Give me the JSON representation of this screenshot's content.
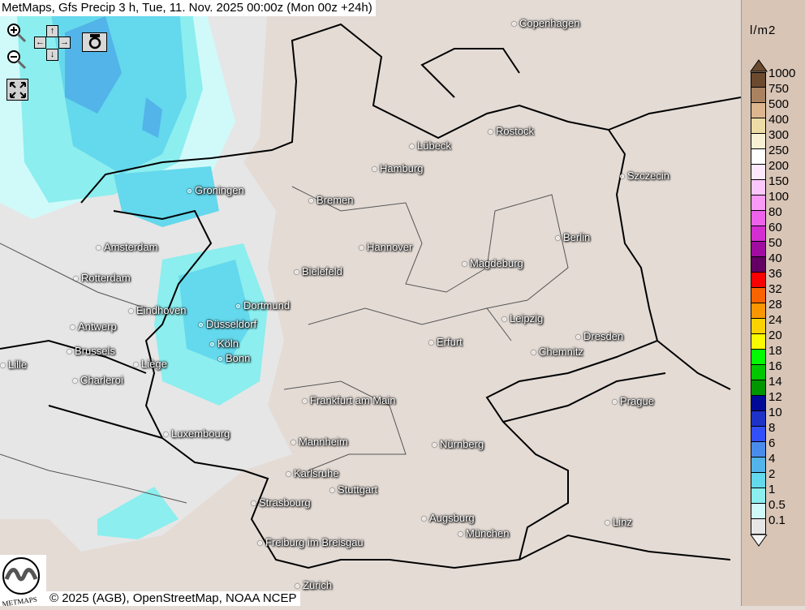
{
  "title": "MetMaps, Gfs Precip 3 h, Tue, 11. Nov. 2025 00:00z (Mon 00z +24h)",
  "controls": {
    "zoom_in": "zoom-in-icon",
    "zoom_out": "zoom-out-icon",
    "fullscreen": "fullscreen-icon",
    "camera": "camera-icon",
    "pan_up": "↑",
    "pan_down": "↓",
    "pan_left": "←",
    "pan_right": "→"
  },
  "copyright": "© 2025 (AGB), OpenStreetMap, NOAA NCEP",
  "logo_text": "METMAPS",
  "cities": [
    {
      "name": "Copenhagen"
    },
    {
      "name": "Rostock"
    },
    {
      "name": "Lübeck"
    },
    {
      "name": "Hamburg"
    },
    {
      "name": "Szczecin"
    },
    {
      "name": "Groningen"
    },
    {
      "name": "Bremen"
    },
    {
      "name": "Berlin"
    },
    {
      "name": "Amsterdam"
    },
    {
      "name": "Hannover"
    },
    {
      "name": "Magdeburg"
    },
    {
      "name": "Bielefeld"
    },
    {
      "name": "Rotterdam"
    },
    {
      "name": "Dortmund"
    },
    {
      "name": "Eindhoven"
    },
    {
      "name": "Leipzig"
    },
    {
      "name": "Antwerp"
    },
    {
      "name": "Düsseldorf"
    },
    {
      "name": "Dresden"
    },
    {
      "name": "Erfurt"
    },
    {
      "name": "Köln"
    },
    {
      "name": "Brussels"
    },
    {
      "name": "Chemnitz"
    },
    {
      "name": "Bonn"
    },
    {
      "name": "Lille"
    },
    {
      "name": "Liège"
    },
    {
      "name": "Charleroi"
    },
    {
      "name": "Frankfurt am Main"
    },
    {
      "name": "Prague"
    },
    {
      "name": "Luxembourg"
    },
    {
      "name": "Mannheim"
    },
    {
      "name": "Nürnberg"
    },
    {
      "name": "Karlsruhe"
    },
    {
      "name": "Stuttgart"
    },
    {
      "name": "Strasbourg"
    },
    {
      "name": "Augsburg"
    },
    {
      "name": "Linz"
    },
    {
      "name": "München"
    },
    {
      "name": "Freiburg im Breisgau"
    },
    {
      "name": "Zürich"
    }
  ],
  "legend": {
    "unit": "l/m2",
    "items": [
      {
        "label": "1000",
        "color": "#6b4a2e"
      },
      {
        "label": "750",
        "color": "#a98260"
      },
      {
        "label": "500",
        "color": "#dcb68e"
      },
      {
        "label": "400",
        "color": "#eedca6"
      },
      {
        "label": "300",
        "color": "#f8f0d4"
      },
      {
        "label": "250",
        "color": "#ffffff"
      },
      {
        "label": "200",
        "color": "#fde8fd"
      },
      {
        "label": "150",
        "color": "#fcc8fc"
      },
      {
        "label": "100",
        "color": "#f89af6"
      },
      {
        "label": "80",
        "color": "#ec62ea"
      },
      {
        "label": "60",
        "color": "#d42ed2"
      },
      {
        "label": "50",
        "color": "#a00ca0"
      },
      {
        "label": "40",
        "color": "#640064"
      },
      {
        "label": "36",
        "color": "#fa0000"
      },
      {
        "label": "32",
        "color": "#fa6400"
      },
      {
        "label": "28",
        "color": "#fa9600"
      },
      {
        "label": "24",
        "color": "#fad200"
      },
      {
        "label": "20",
        "color": "#fafa00"
      },
      {
        "label": "18",
        "color": "#00fa00"
      },
      {
        "label": "16",
        "color": "#00c800"
      },
      {
        "label": "14",
        "color": "#009600"
      },
      {
        "label": "12",
        "color": "#000a96"
      },
      {
        "label": "10",
        "color": "#1e32c8"
      },
      {
        "label": "8",
        "color": "#3250fa"
      },
      {
        "label": "6",
        "color": "#4a8cec"
      },
      {
        "label": "4",
        "color": "#52b4e8"
      },
      {
        "label": "2",
        "color": "#64d8ec"
      },
      {
        "label": "1",
        "color": "#8ceeee"
      },
      {
        "label": "0.5",
        "color": "#d0fafa"
      },
      {
        "label": "0.1",
        "color": "#e6e6e6"
      }
    ]
  }
}
